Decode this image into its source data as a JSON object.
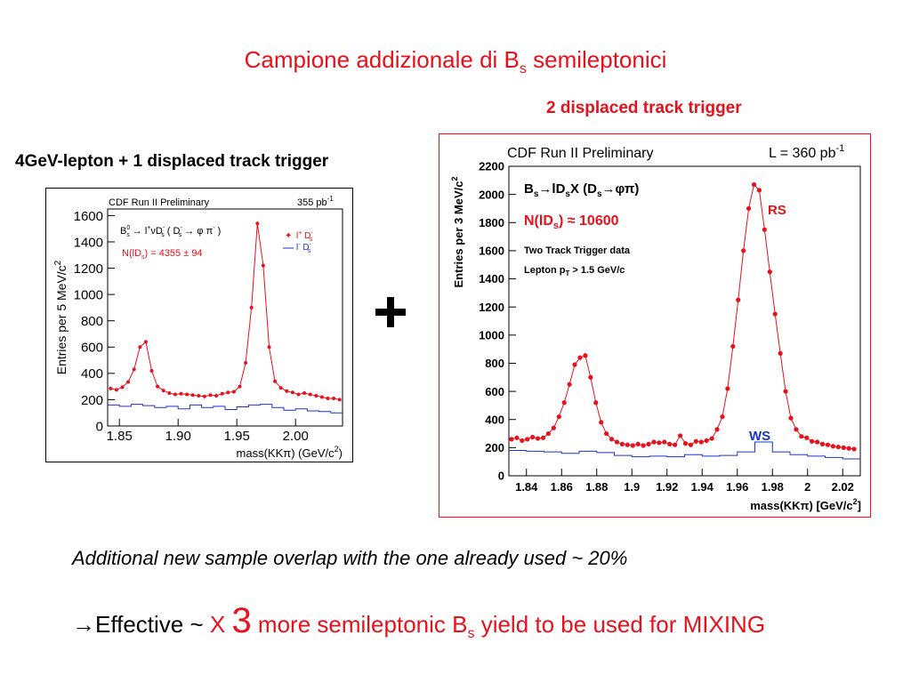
{
  "slide": {
    "title_main": "Campione addizionale di B",
    "title_sub": "s",
    "title_tail": " semileptonici",
    "left_trigger_label": "4GeV-lepton + 1 displaced track trigger",
    "right_trigger_label": "2 displaced track trigger",
    "plus_symbol": "+",
    "overlap_note": "Additional new sample overlap with the one already used ~ 20%",
    "effective": {
      "arrow": "→",
      "p1": "Effective ~ ",
      "x": "X ",
      "three": "3",
      "p2": " more semileptonic B",
      "sub": "s",
      "p3": " yield to be used for MIXING"
    }
  },
  "colors": {
    "accent_red": "#e8101a",
    "ws_blue": "#1a35c8",
    "black": "#000000"
  },
  "chart_data": [
    {
      "type": "scatter",
      "title": "CDF Run II Preliminary",
      "lumi": "355 pb",
      "lumi_exp": "-1",
      "ylabel": "Entries per 5 MeV/c",
      "ylabel_exp": "2",
      "xlabel": "mass(KKπ) (GeV/c",
      "xlabel_exp": "2",
      "xlabel_tail": ")",
      "xlim": [
        1.84,
        2.04
      ],
      "ylim": [
        0,
        1650
      ],
      "xticks": [
        1.85,
        1.9,
        1.95,
        2.0
      ],
      "xtick_labels": [
        "1.85",
        "1.90",
        "1.95",
        "2.00"
      ],
      "yticks": [
        0,
        200,
        400,
        600,
        800,
        1000,
        1200,
        1400,
        1600
      ],
      "ytick_labels": [
        "0",
        "200",
        "400",
        "600",
        "800",
        "1000",
        "1200",
        "1400",
        "1600"
      ],
      "annotations": [
        "B",
        "0",
        "s",
        " → l",
        "+",
        "νD",
        "-",
        "s",
        " ( D",
        "-",
        "s",
        " → φ π",
        "-",
        " )",
        "N(lD",
        "s",
        ") = 4355 ± 94"
      ],
      "legend": {
        "rs": "l",
        "rs_sup": "+",
        "rs_tail": " D",
        "rs_tail_sup": "-",
        "rs_tail_sub": "s",
        "ws": "l",
        "ws_sup": "-",
        "ws_tail": " D",
        "ws_tail_sup": "-",
        "ws_tail_sub": "s"
      },
      "series": [
        {
          "name": "l+ D-s",
          "style": "points+fit",
          "x": [
            1.8425,
            1.8475,
            1.8525,
            1.8575,
            1.8625,
            1.8675,
            1.8725,
            1.8775,
            1.8825,
            1.8875,
            1.8925,
            1.8975,
            1.9025,
            1.9075,
            1.9125,
            1.9175,
            1.9225,
            1.9275,
            1.9325,
            1.9375,
            1.9425,
            1.9475,
            1.9525,
            1.9575,
            1.9625,
            1.9675,
            1.9725,
            1.9775,
            1.9825,
            1.9875,
            1.9925,
            1.9975,
            2.0025,
            2.0075,
            2.0125,
            2.0175,
            2.0225,
            2.0275,
            2.0325,
            2.0375
          ],
          "y": [
            285,
            275,
            295,
            335,
            430,
            600,
            640,
            420,
            300,
            270,
            250,
            240,
            245,
            240,
            235,
            230,
            225,
            235,
            230,
            245,
            255,
            260,
            300,
            480,
            900,
            1540,
            1220,
            600,
            340,
            290,
            265,
            255,
            240,
            250,
            240,
            230,
            220,
            210,
            210,
            200
          ]
        },
        {
          "name": "l- D-s",
          "style": "step",
          "x": [
            1.84,
            1.85,
            1.86,
            1.87,
            1.88,
            1.89,
            1.9,
            1.91,
            1.92,
            1.93,
            1.94,
            1.95,
            1.96,
            1.97,
            1.98,
            1.99,
            2.0,
            2.01,
            2.02,
            2.03
          ],
          "y": [
            160,
            150,
            165,
            155,
            140,
            150,
            130,
            160,
            140,
            150,
            125,
            145,
            160,
            165,
            140,
            120,
            130,
            115,
            110,
            100
          ]
        }
      ]
    },
    {
      "type": "scatter",
      "title": "CDF Run II Preliminary",
      "lumi": "L = 360 pb",
      "lumi_exp": "-1",
      "ylabel": "Entries per 3 MeV/c",
      "ylabel_exp": "2",
      "xlabel": "mass(KKπ) [GeV/c",
      "xlabel_exp": "2",
      "xlabel_tail": "]",
      "xlim": [
        1.83,
        2.03
      ],
      "ylim": [
        0,
        2200
      ],
      "xticks": [
        1.84,
        1.86,
        1.88,
        1.9,
        1.92,
        1.94,
        1.96,
        1.98,
        2.0,
        2.02
      ],
      "xtick_labels": [
        "1.84",
        "1.86",
        "1.88",
        "1.9",
        "1.92",
        "1.94",
        "1.96",
        "1.98",
        "2",
        "2.02"
      ],
      "yticks": [
        0,
        200,
        400,
        600,
        800,
        1000,
        1200,
        1400,
        1600,
        1800,
        2000,
        2200
      ],
      "ytick_labels": [
        "0",
        "200",
        "400",
        "600",
        "800",
        "1000",
        "1200",
        "1400",
        "1600",
        "1800",
        "2000",
        "2200"
      ],
      "annotations": [
        "B",
        "s",
        "→lD",
        "s",
        "X (D",
        "s",
        "→φπ)",
        "N(lD",
        "s",
        ") ≈ 10600",
        "Two Track Trigger data",
        "Lepton p",
        "T",
        " > 1.5 GeV/c"
      ],
      "series_labels": {
        "rs": "RS",
        "ws": "WS"
      },
      "series": [
        {
          "name": "RS",
          "style": "points+fit",
          "x": [
            1.8315,
            1.8345,
            1.8375,
            1.8405,
            1.8435,
            1.8465,
            1.8495,
            1.8525,
            1.8555,
            1.8585,
            1.8615,
            1.8645,
            1.8675,
            1.8705,
            1.8735,
            1.8765,
            1.8795,
            1.8825,
            1.8855,
            1.8885,
            1.8915,
            1.8945,
            1.8975,
            1.9005,
            1.9035,
            1.9065,
            1.9095,
            1.9125,
            1.9155,
            1.9185,
            1.9215,
            1.9245,
            1.9275,
            1.9305,
            1.9335,
            1.9365,
            1.9395,
            1.9425,
            1.9455,
            1.9485,
            1.9515,
            1.9545,
            1.9575,
            1.9605,
            1.9635,
            1.9665,
            1.9695,
            1.9725,
            1.9755,
            1.9785,
            1.9815,
            1.9845,
            1.9875,
            1.9905,
            1.9935,
            1.9965,
            1.9995,
            2.0025,
            2.0055,
            2.0085,
            2.0115,
            2.0145,
            2.0175,
            2.0205,
            2.0235,
            2.0265
          ],
          "y": [
            260,
            270,
            250,
            260,
            275,
            265,
            270,
            300,
            340,
            420,
            520,
            650,
            790,
            840,
            855,
            700,
            520,
            380,
            300,
            260,
            240,
            225,
            220,
            215,
            225,
            215,
            225,
            240,
            235,
            240,
            225,
            220,
            285,
            230,
            220,
            245,
            240,
            250,
            265,
            330,
            420,
            620,
            920,
            1250,
            1600,
            1900,
            2070,
            2030,
            1750,
            1450,
            1150,
            870,
            600,
            410,
            330,
            280,
            270,
            245,
            240,
            225,
            220,
            210,
            205,
            200,
            195,
            190
          ]
        },
        {
          "name": "WS",
          "style": "step",
          "x": [
            1.83,
            1.84,
            1.85,
            1.86,
            1.87,
            1.88,
            1.89,
            1.9,
            1.91,
            1.92,
            1.93,
            1.94,
            1.95,
            1.96,
            1.97,
            1.98,
            1.99,
            2.0,
            2.01,
            2.02
          ],
          "y": [
            180,
            175,
            170,
            160,
            175,
            165,
            145,
            135,
            140,
            135,
            150,
            140,
            145,
            170,
            240,
            170,
            150,
            140,
            130,
            120
          ]
        }
      ]
    }
  ]
}
